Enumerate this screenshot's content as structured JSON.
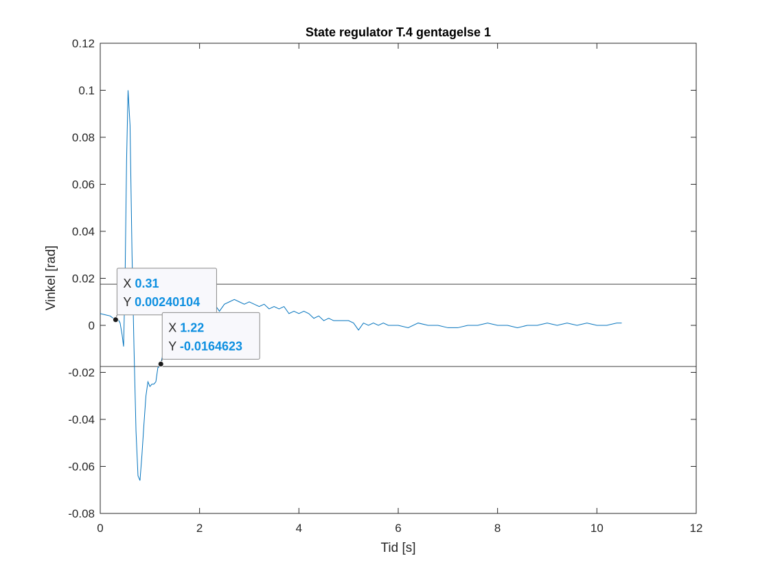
{
  "chart_data": {
    "type": "line",
    "title": "State regulator T.4 gentagelse 1",
    "xlabel": "Tid [s]",
    "ylabel": "Vinkel [rad]",
    "xlim": [
      0,
      12
    ],
    "ylim": [
      -0.08,
      0.12
    ],
    "xticks": [
      0,
      2,
      4,
      6,
      8,
      10,
      12
    ],
    "xtick_labels": [
      "0",
      "2",
      "4",
      "6",
      "8",
      "10",
      "12"
    ],
    "yticks": [
      -0.08,
      -0.06,
      -0.04,
      -0.02,
      0,
      0.02,
      0.04,
      0.06,
      0.08,
      0.1,
      0.12
    ],
    "ytick_labels": [
      "-0.08",
      "-0.06",
      "-0.04",
      "-0.02",
      "0",
      "0.02",
      "0.04",
      "0.06",
      "0.08",
      "0.1",
      "0.12"
    ],
    "grid": false,
    "line_color": "#0072BD",
    "reference_lines": [
      0.0175,
      -0.0175
    ],
    "series": [
      {
        "x": [
          0,
          0.1,
          0.2,
          0.3,
          0.35,
          0.4,
          0.44,
          0.47,
          0.5,
          0.53,
          0.56,
          0.6,
          0.64,
          0.68,
          0.72,
          0.76,
          0.8,
          0.84,
          0.88,
          0.92,
          0.96,
          1.0,
          1.04,
          1.08,
          1.12,
          1.16,
          1.2,
          1.22,
          1.3,
          1.4,
          1.5,
          1.6,
          1.7,
          1.8,
          1.9,
          2.0,
          2.1,
          2.2,
          2.3,
          2.4,
          2.5,
          2.6,
          2.7,
          2.8,
          2.9,
          3.0,
          3.1,
          3.2,
          3.3,
          3.4,
          3.5,
          3.6,
          3.7,
          3.8,
          3.9,
          4.0,
          4.1,
          4.2,
          4.3,
          4.4,
          4.5,
          4.6,
          4.7,
          4.8,
          4.9,
          5.0,
          5.1,
          5.2,
          5.3,
          5.4,
          5.5,
          5.6,
          5.7,
          5.8,
          5.9,
          6.0,
          6.2,
          6.4,
          6.6,
          6.8,
          7.0,
          7.2,
          7.4,
          7.6,
          7.8,
          8.0,
          8.2,
          8.4,
          8.6,
          8.8,
          9.0,
          9.2,
          9.4,
          9.6,
          9.8,
          10.0,
          10.2,
          10.4,
          10.5
        ],
        "y": [
          0.005,
          0.0045,
          0.004,
          0.0024,
          0.003,
          0.001,
          -0.004,
          -0.009,
          0.02,
          0.07,
          0.1,
          0.085,
          0.03,
          -0.01,
          -0.045,
          -0.064,
          -0.066,
          -0.055,
          -0.042,
          -0.03,
          -0.024,
          -0.026,
          -0.025,
          -0.025,
          -0.024,
          -0.018,
          -0.0175,
          -0.0165,
          -0.008,
          0.002,
          0.008,
          0.009,
          0.007,
          0.006,
          0.006,
          0.007,
          0.005,
          0.008,
          0.009,
          0.006,
          0.009,
          0.01,
          0.011,
          0.01,
          0.009,
          0.01,
          0.009,
          0.008,
          0.009,
          0.007,
          0.008,
          0.007,
          0.008,
          0.005,
          0.006,
          0.005,
          0.006,
          0.005,
          0.003,
          0.004,
          0.002,
          0.003,
          0.002,
          0.002,
          0.002,
          0.002,
          0.001,
          -0.002,
          0.001,
          0.0,
          0.001,
          0.0,
          0.001,
          0.0,
          0.0,
          0.0,
          -0.001,
          0.001,
          0.0,
          0.0,
          -0.001,
          -0.001,
          0.0,
          0.0,
          0.001,
          0.0,
          0.0,
          -0.001,
          0.0,
          0.0,
          0.001,
          0.0,
          0.001,
          0.0,
          0.001,
          0.0,
          0.0,
          0.001,
          0.001
        ]
      }
    ],
    "datatips": [
      {
        "x": 0.31,
        "y": 0.00240104,
        "x_label": "X",
        "y_label": "Y",
        "x_text": "0.31",
        "y_text": "0.00240104"
      },
      {
        "x": 1.22,
        "y": -0.0164623,
        "x_label": "X",
        "y_label": "Y",
        "x_text": "1.22",
        "y_text": "-0.0164623"
      }
    ]
  }
}
